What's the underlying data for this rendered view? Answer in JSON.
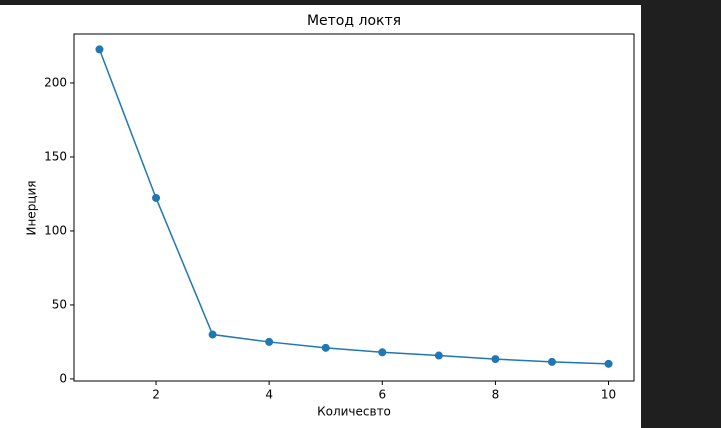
{
  "chart_data": {
    "type": "line",
    "title": "Метод локтя",
    "x_label": "Количесвто",
    "y_label": "Инерция",
    "x": [
      1,
      2,
      3,
      4,
      5,
      6,
      7,
      8,
      9,
      10
    ],
    "series": [
      {
        "color": "#1f77b4",
        "values": [
          222.7,
          122.3,
          30,
          25,
          21,
          18,
          15.8,
          13.4,
          11.5,
          10.2
        ]
      }
    ],
    "xlim": [
      0.55,
      10.45
    ],
    "ylim": [
      -1.4,
      233.1
    ],
    "xticks": [
      2,
      4,
      6,
      8,
      10
    ],
    "yticks": [
      0,
      50,
      100,
      150,
      200
    ]
  }
}
